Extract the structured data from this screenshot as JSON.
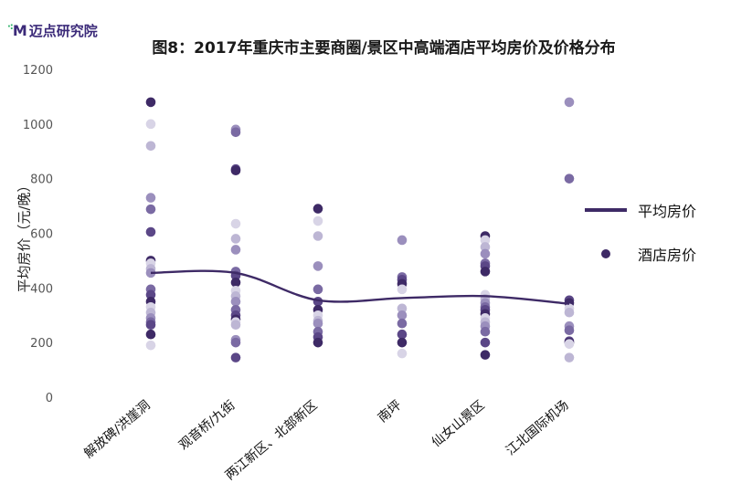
{
  "logo": {
    "text": "迈点研究院",
    "mark": "M"
  },
  "chart_data": {
    "type": "scatter",
    "title": "图8：2017年重庆市主要商圈/景区中高端酒店平均房价及价格分布",
    "ylabel": "平均房价（元/晚）",
    "ylim": [
      0,
      1200
    ],
    "yticks": [
      0,
      200,
      400,
      600,
      800,
      1000,
      1200
    ],
    "grid": false,
    "legend_position": "right",
    "categories": [
      "解放碑/洪崖洞",
      "观音桥/九街",
      "两江新区、北部新区",
      "南坪",
      "仙女山景区",
      "江北国际机场"
    ],
    "series": [
      {
        "name": "平均房价",
        "type": "line",
        "values": [
          455,
          455,
          355,
          363,
          370,
          342
        ],
        "color": "#3e2a66"
      },
      {
        "name": "酒店房价",
        "type": "scatter",
        "color": "#3e2a66",
        "points": [
          [
            1080,
            1000,
            920,
            730,
            688,
            605,
            500,
            490,
            470,
            455,
            395,
            375,
            350,
            330,
            310,
            290,
            275,
            265,
            230,
            190
          ],
          [
            980,
            970,
            835,
            830,
            635,
            580,
            540,
            460,
            445,
            420,
            390,
            370,
            350,
            320,
            300,
            285,
            275,
            265,
            210,
            200,
            145
          ],
          [
            690,
            645,
            590,
            480,
            395,
            350,
            320,
            300,
            280,
            270,
            240,
            220,
            200
          ],
          [
            575,
            440,
            430,
            415,
            395,
            325,
            300,
            270,
            230,
            200,
            160
          ],
          [
            590,
            575,
            550,
            525,
            490,
            480,
            460,
            375,
            360,
            345,
            330,
            320,
            305,
            290,
            275,
            260,
            240,
            200,
            155
          ],
          [
            1080,
            800,
            355,
            345,
            325,
            310,
            260,
            245,
            205,
            200,
            195,
            145
          ]
        ]
      }
    ]
  }
}
